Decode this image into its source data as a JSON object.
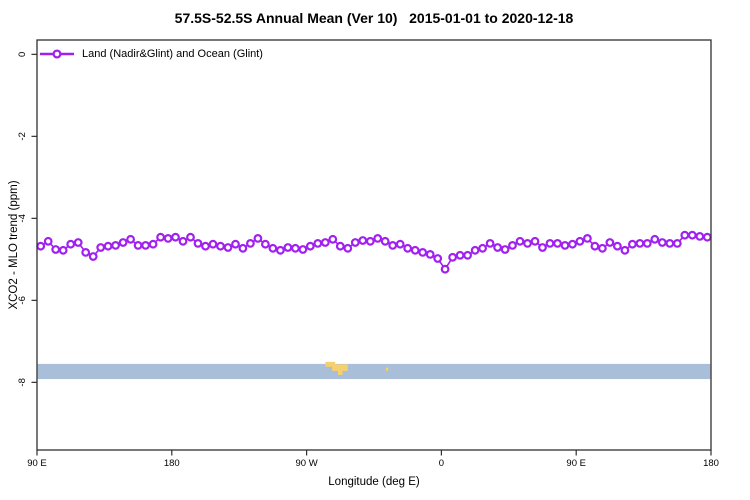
{
  "chart_data": {
    "type": "line",
    "title": "57.5S-52.5S Annual Mean (Ver 10)   2015-01-01 to 2020-12-18",
    "xlabel": "Longitude (deg E)",
    "ylabel": "XCO2 - MLO trend (ppm)",
    "xlim": [
      90,
      540
    ],
    "ylim": [
      -9.65,
      0.35
    ],
    "grid": false,
    "legend_position": "top-left",
    "x_ticks": [
      {
        "value": 90,
        "label": "90 E"
      },
      {
        "value": 180,
        "label": "180"
      },
      {
        "value": 270,
        "label": "90 W"
      },
      {
        "value": 360,
        "label": "0"
      },
      {
        "value": 450,
        "label": "90 E"
      },
      {
        "value": 540,
        "label": "180"
      }
    ],
    "y_ticks": [
      {
        "value": 0,
        "label": "0"
      },
      {
        "value": -2,
        "label": "-2"
      },
      {
        "value": -4,
        "label": "-4"
      },
      {
        "value": -6,
        "label": "-6"
      },
      {
        "value": -8,
        "label": "-8"
      }
    ],
    "series": [
      {
        "name": "Land (Nadir&Glint) and Ocean (Glint)",
        "color": "#a020f0",
        "marker": "open-circle",
        "x_start": 92.5,
        "x_step": 5,
        "values": [
          -4.68,
          -4.56,
          -4.76,
          -4.78,
          -4.63,
          -4.59,
          -4.83,
          -4.93,
          -4.71,
          -4.68,
          -4.66,
          -4.59,
          -4.51,
          -4.66,
          -4.66,
          -4.63,
          -4.46,
          -4.49,
          -4.46,
          -4.56,
          -4.46,
          -4.61,
          -4.68,
          -4.63,
          -4.68,
          -4.71,
          -4.63,
          -4.73,
          -4.61,
          -4.49,
          -4.63,
          -4.73,
          -4.78,
          -4.71,
          -4.73,
          -4.76,
          -4.68,
          -4.61,
          -4.59,
          -4.51,
          -4.68,
          -4.73,
          -4.59,
          -4.54,
          -4.56,
          -4.49,
          -4.56,
          -4.66,
          -4.63,
          -4.73,
          -4.78,
          -4.83,
          -4.88,
          -4.98,
          -5.24,
          -4.95,
          -4.9,
          -4.9,
          -4.78,
          -4.73,
          -4.61,
          -4.71,
          -4.76,
          -4.66,
          -4.56,
          -4.61,
          -4.56,
          -4.71,
          -4.61,
          -4.61,
          -4.66,
          -4.63,
          -4.56,
          -4.49,
          -4.68,
          -4.73,
          -4.59,
          -4.68,
          -4.78,
          -4.63,
          -4.61,
          -4.61,
          -4.51,
          -4.59,
          -4.61,
          -4.61,
          -4.41,
          -4.41,
          -4.44,
          -4.46
        ]
      }
    ],
    "map_strip": {
      "description": "latitude-band world map strip (ocean with land patches)",
      "ocean_color": "#a9bed9",
      "land_color": "#f5d06e",
      "y_top": -7.55,
      "y_bottom": -7.92,
      "land_patches": [
        {
          "x0": 282.5,
          "x1": 289.0,
          "y0": -7.5,
          "y1": -7.62
        },
        {
          "x0": 287.0,
          "x1": 297.5,
          "y0": -7.56,
          "y1": -7.72
        },
        {
          "x0": 291.0,
          "x1": 294.0,
          "y0": -7.7,
          "y1": -7.82
        },
        {
          "x0": 323.0,
          "x1": 324.5,
          "y0": -7.64,
          "y1": -7.72
        }
      ]
    },
    "frame_color": "#2f2f2f",
    "tick_label_color": "#000000"
  }
}
